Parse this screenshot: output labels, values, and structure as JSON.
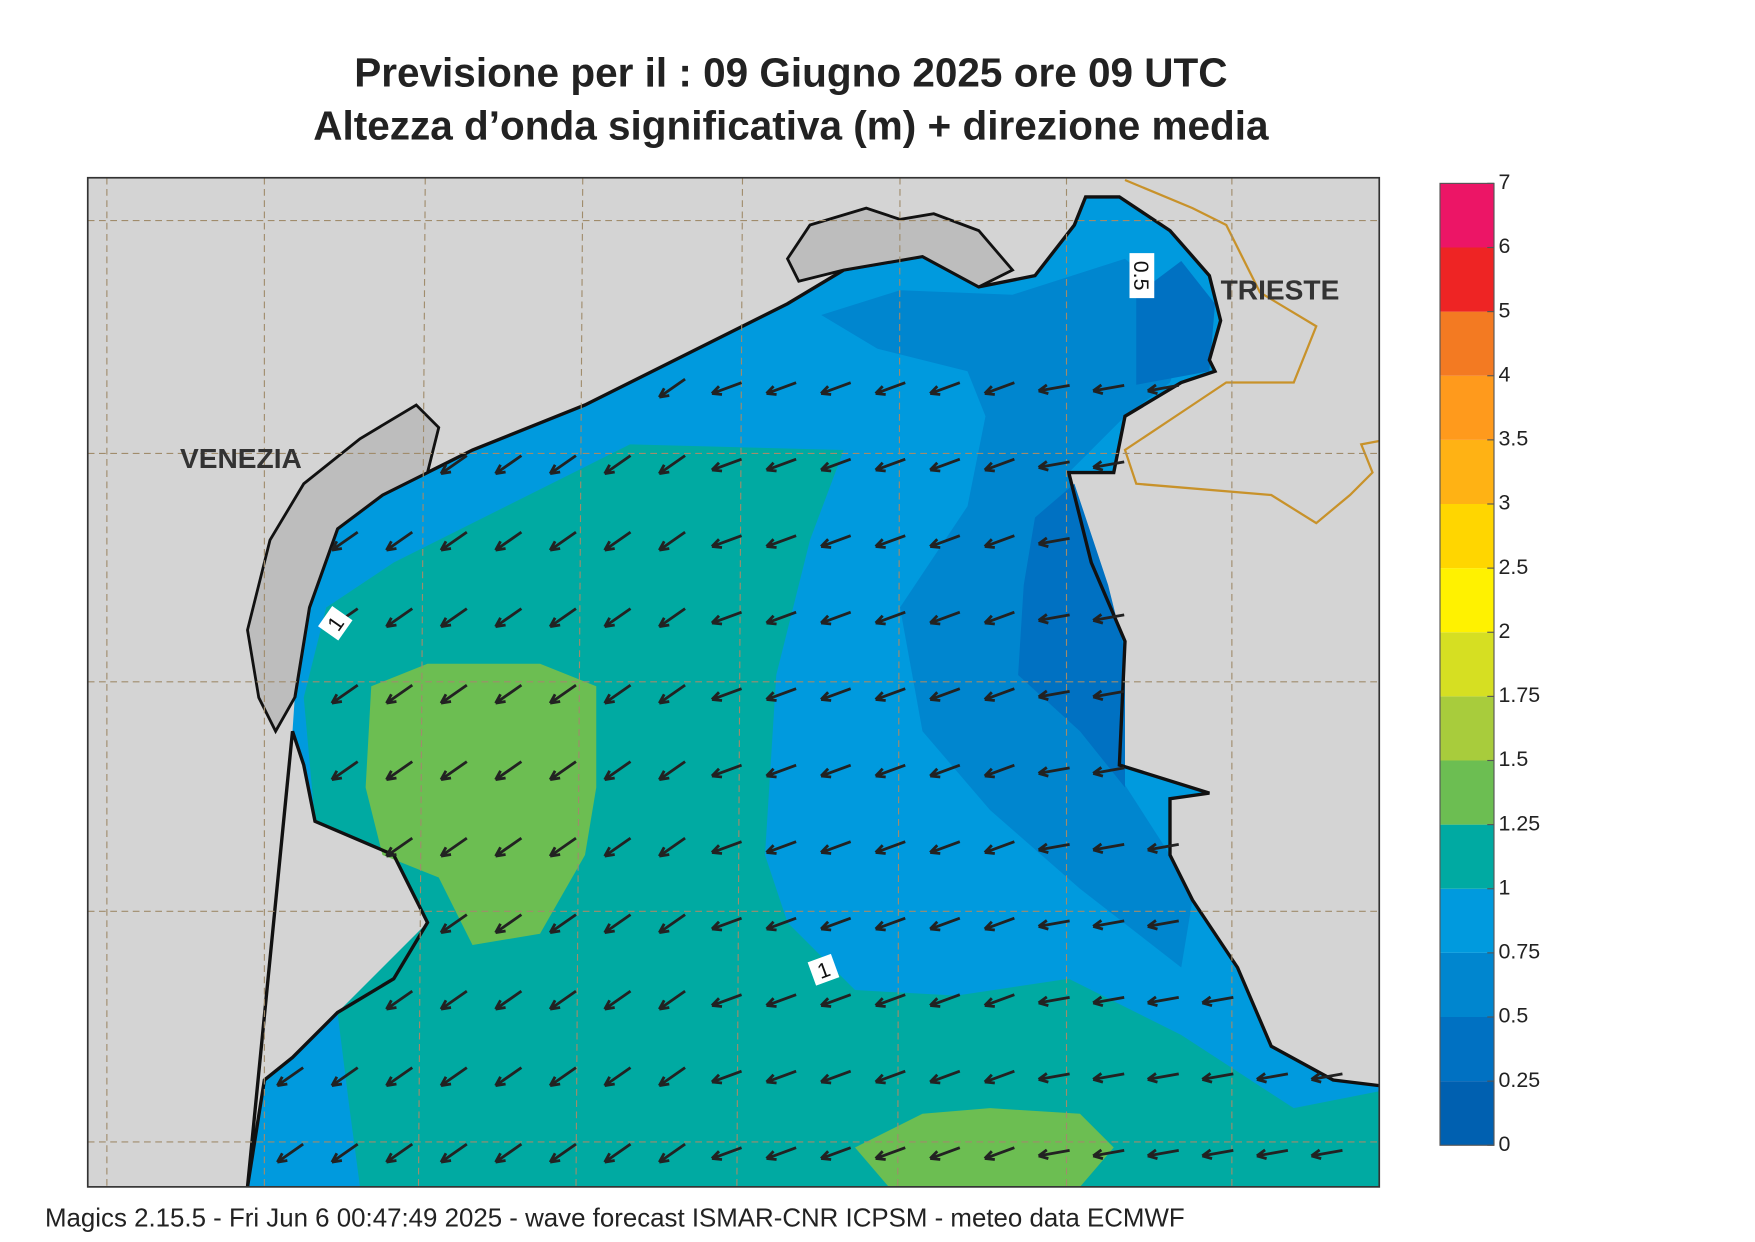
{
  "header": {
    "title_line1": "Previsione per il  :  09   Giugno  2025   ore 09 UTC",
    "title_line2": "Altezza d’onda significativa (m) + direzione media"
  },
  "map": {
    "places": [
      "VENEZIA",
      "TRIESTE"
    ],
    "contour_labels": [
      0.5,
      1,
      1
    ]
  },
  "colorbar": {
    "levels": [
      0,
      0.25,
      0.5,
      0.75,
      1,
      1.25,
      1.5,
      1.75,
      2,
      2.5,
      3,
      3.5,
      4,
      5,
      6,
      7
    ],
    "colors": [
      "#0060b0",
      "#0071c2",
      "#0086cf",
      "#009ade",
      "#00aaa2",
      "#6cbe52",
      "#a8cc3c",
      "#d6df22",
      "#fff200",
      "#ffd600",
      "#ffb214",
      "#ff9a1c",
      "#f37a22",
      "#ee2424",
      "#ec1566"
    ]
  },
  "footer": "Magics 2.15.5 - Fri Jun  6 00:47:49 2025 - wave forecast  ISMAR-CNR  ICPSM - meteo data   ECMWF"
}
